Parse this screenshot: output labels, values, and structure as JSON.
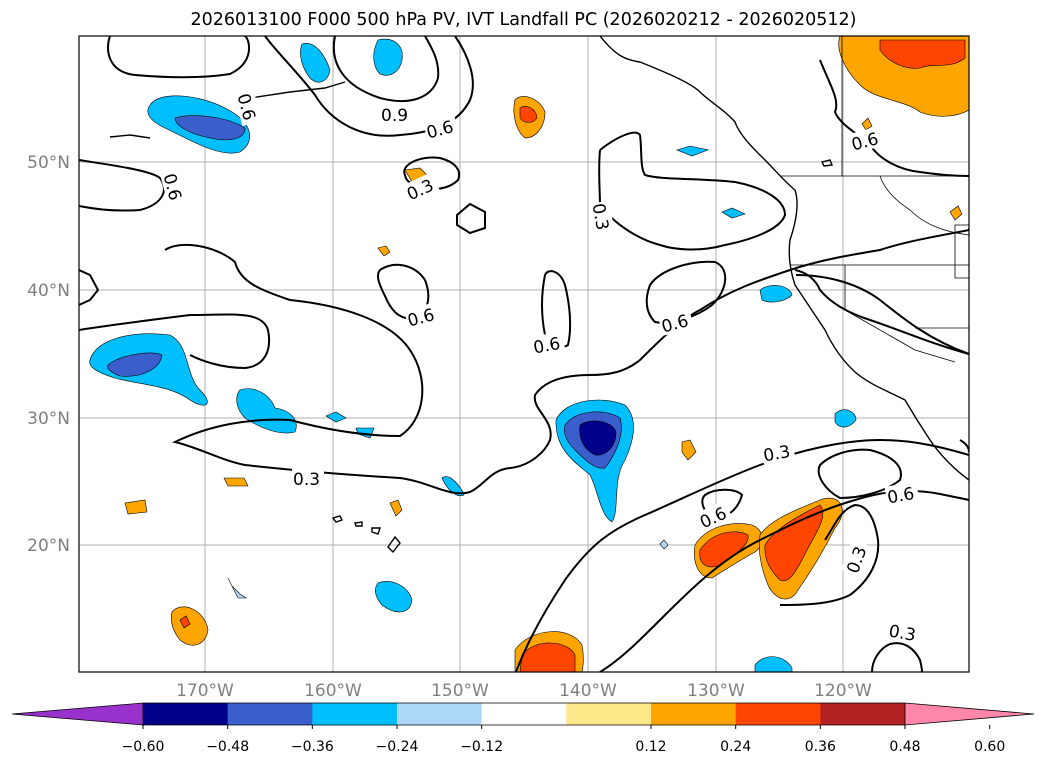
{
  "title": "2026013100 F000 500 hPa PV, IVT Landfall PC (2026020212 - 2026020512)",
  "lat_labels": [
    "50°N",
    "40°N",
    "30°N",
    "20°N"
  ],
  "lon_labels": [
    "170°W",
    "160°W",
    "150°W",
    "140°W",
    "130°W",
    "120°W"
  ],
  "colorbar": {
    "ticks": [
      "−0.60",
      "−0.48",
      "−0.36",
      "−0.24",
      "−0.12",
      "0.12",
      "0.24",
      "0.36",
      "0.48",
      "0.60"
    ],
    "colors": [
      "#9932cc",
      "#00008b",
      "#3a5fcd",
      "#00bfff",
      "#add8f7",
      "#ffffff",
      "#ffe88a",
      "#ffa500",
      "#ff4500",
      "#b22222",
      "#ff88aa"
    ]
  },
  "contour_labels": {
    "c1": "0.9",
    "c2": "0.6",
    "c3": "0.6",
    "c4": "0.6",
    "c5": "0.3",
    "c6": "0.3",
    "c7": "0.6",
    "c8": "0.6",
    "c9": "0.6",
    "c10": "0.6",
    "c11": "0.3",
    "c12": "0.3",
    "c13": "0.6",
    "c14": "0.6",
    "c15": "0.3",
    "c16": "0.3",
    "c17": "0.6"
  }
}
